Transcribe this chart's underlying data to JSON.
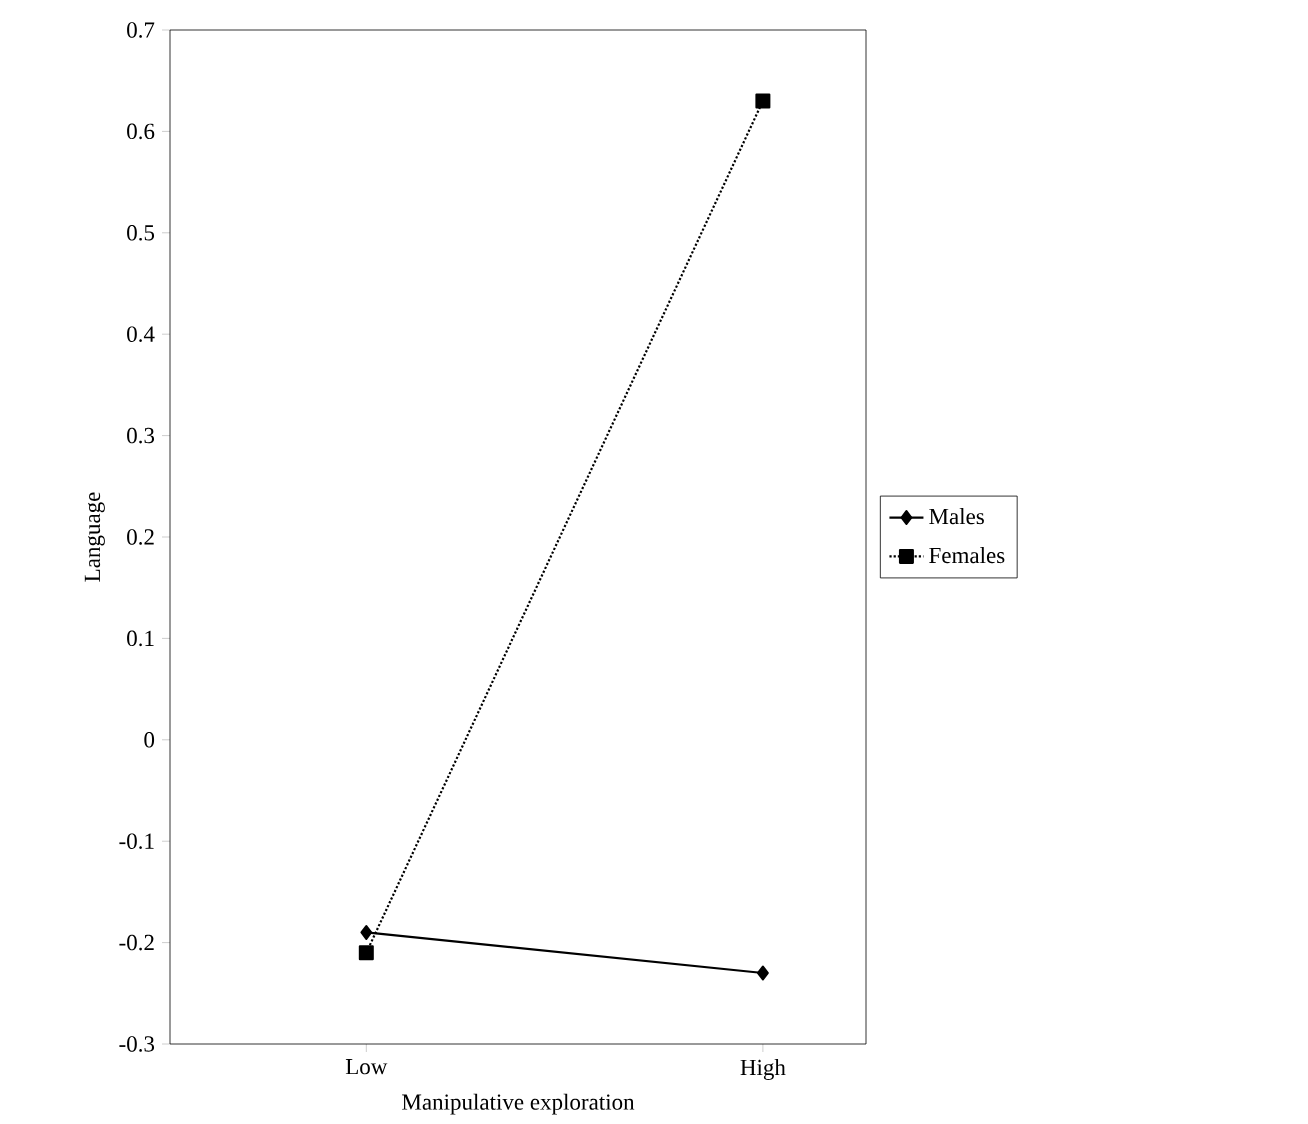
{
  "chart_data": {
    "type": "line",
    "xlabel": "Manipulative exploration",
    "ylabel": "Language",
    "categories": [
      "Low",
      "High"
    ],
    "series": [
      {
        "name": "Males",
        "color": "#000000",
        "values": [
          -0.19,
          -0.23
        ],
        "marker": "diamond",
        "line_style": "solid"
      },
      {
        "name": "Females",
        "color": "#000000",
        "values": [
          -0.21,
          0.63
        ],
        "marker": "square",
        "line_style": "dotted"
      }
    ],
    "ylim": [
      -0.3,
      0.7
    ],
    "yticks": [
      -0.3,
      -0.2,
      -0.1,
      0,
      0.1,
      0.2,
      0.3,
      0.4,
      0.5,
      0.6,
      0.7
    ],
    "legend": "right"
  }
}
